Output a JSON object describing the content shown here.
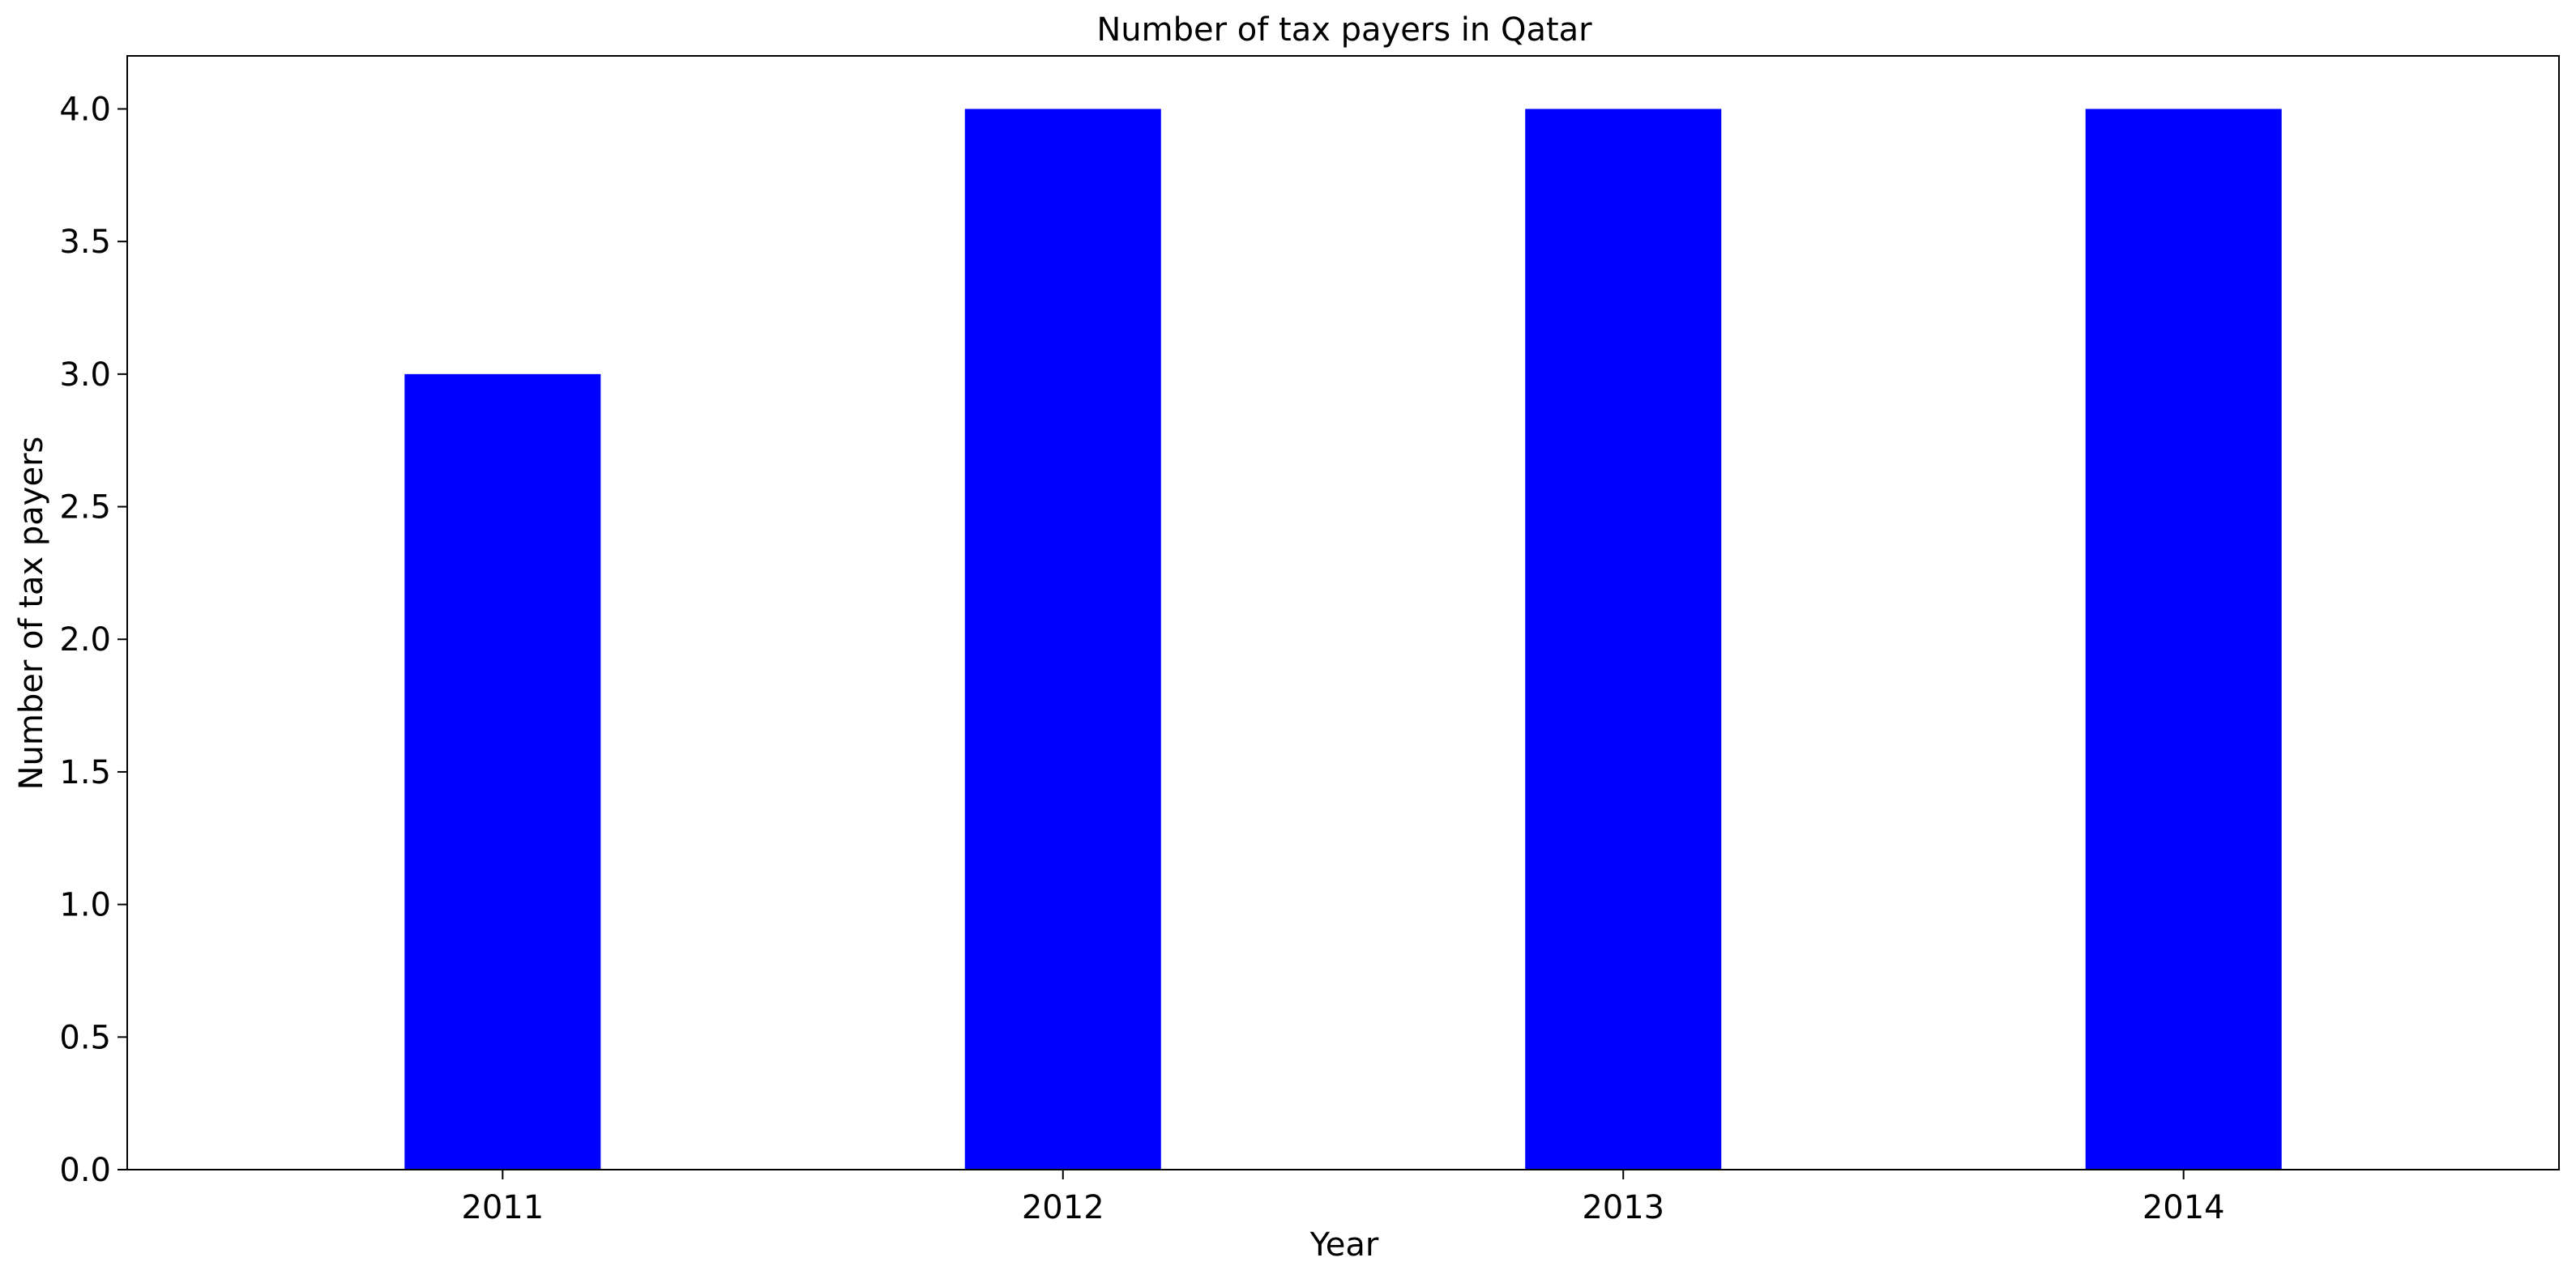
{
  "chart_data": {
    "type": "bar",
    "title": "Number of tax payers in Qatar",
    "xlabel": "Year",
    "ylabel": "Number of tax payers",
    "categories": [
      "2011",
      "2012",
      "2013",
      "2014"
    ],
    "values": [
      3,
      4,
      4,
      4
    ],
    "ylim": [
      0,
      4.2
    ],
    "yticks": [
      0.0,
      0.5,
      1.0,
      1.5,
      2.0,
      2.5,
      3.0,
      3.5,
      4.0
    ],
    "ytick_labels": [
      "0.0",
      "0.5",
      "1.0",
      "1.5",
      "2.0",
      "2.5",
      "3.0",
      "3.5",
      "4.0"
    ],
    "bar_color": "#0000ff",
    "grid": false,
    "legend": "none"
  }
}
